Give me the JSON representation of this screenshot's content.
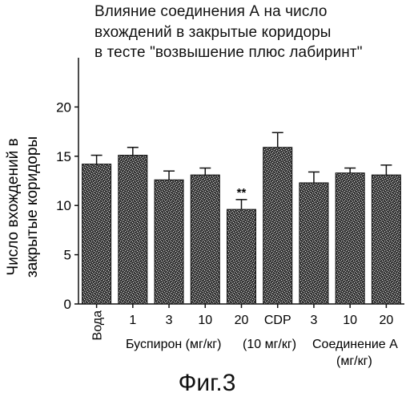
{
  "title_lines": [
    "Влияние соединения А на число",
    "вхождений в закрытые коридоры",
    "в тесте \"возвышение плюс лабиринт\""
  ],
  "figure_caption": "Фиг.3",
  "chart_data": {
    "type": "bar",
    "title": "Влияние соединения А на число вхождений в закрытые коридоры в тесте \"возвышение плюс лабиринт\"",
    "ylabel_lines": [
      "Число вхождений в",
      "закрытые коридоры"
    ],
    "ylim": [
      0,
      25
    ],
    "yticks": [
      0,
      5,
      10,
      15,
      20
    ],
    "categories": [
      "Вода",
      "1",
      "3",
      "10",
      "20",
      "CDP",
      "3",
      "10",
      "20"
    ],
    "values": [
      14.2,
      15.1,
      12.6,
      13.1,
      9.6,
      15.9,
      12.3,
      13.3,
      13.1
    ],
    "errors": [
      0.9,
      0.8,
      0.9,
      0.7,
      1.0,
      1.5,
      1.1,
      0.5,
      1.0
    ],
    "annotations": [
      {
        "category_index": 4,
        "text": "**"
      }
    ],
    "group_labels": {
      "buspirone": "Буспирон (мг/кг)",
      "cdp": "(10 мг/кг)",
      "compound_line1": "Соединение А",
      "compound_line2": "(мг/кг)"
    },
    "grid": false,
    "bar_fill": "stippled dark gray"
  }
}
